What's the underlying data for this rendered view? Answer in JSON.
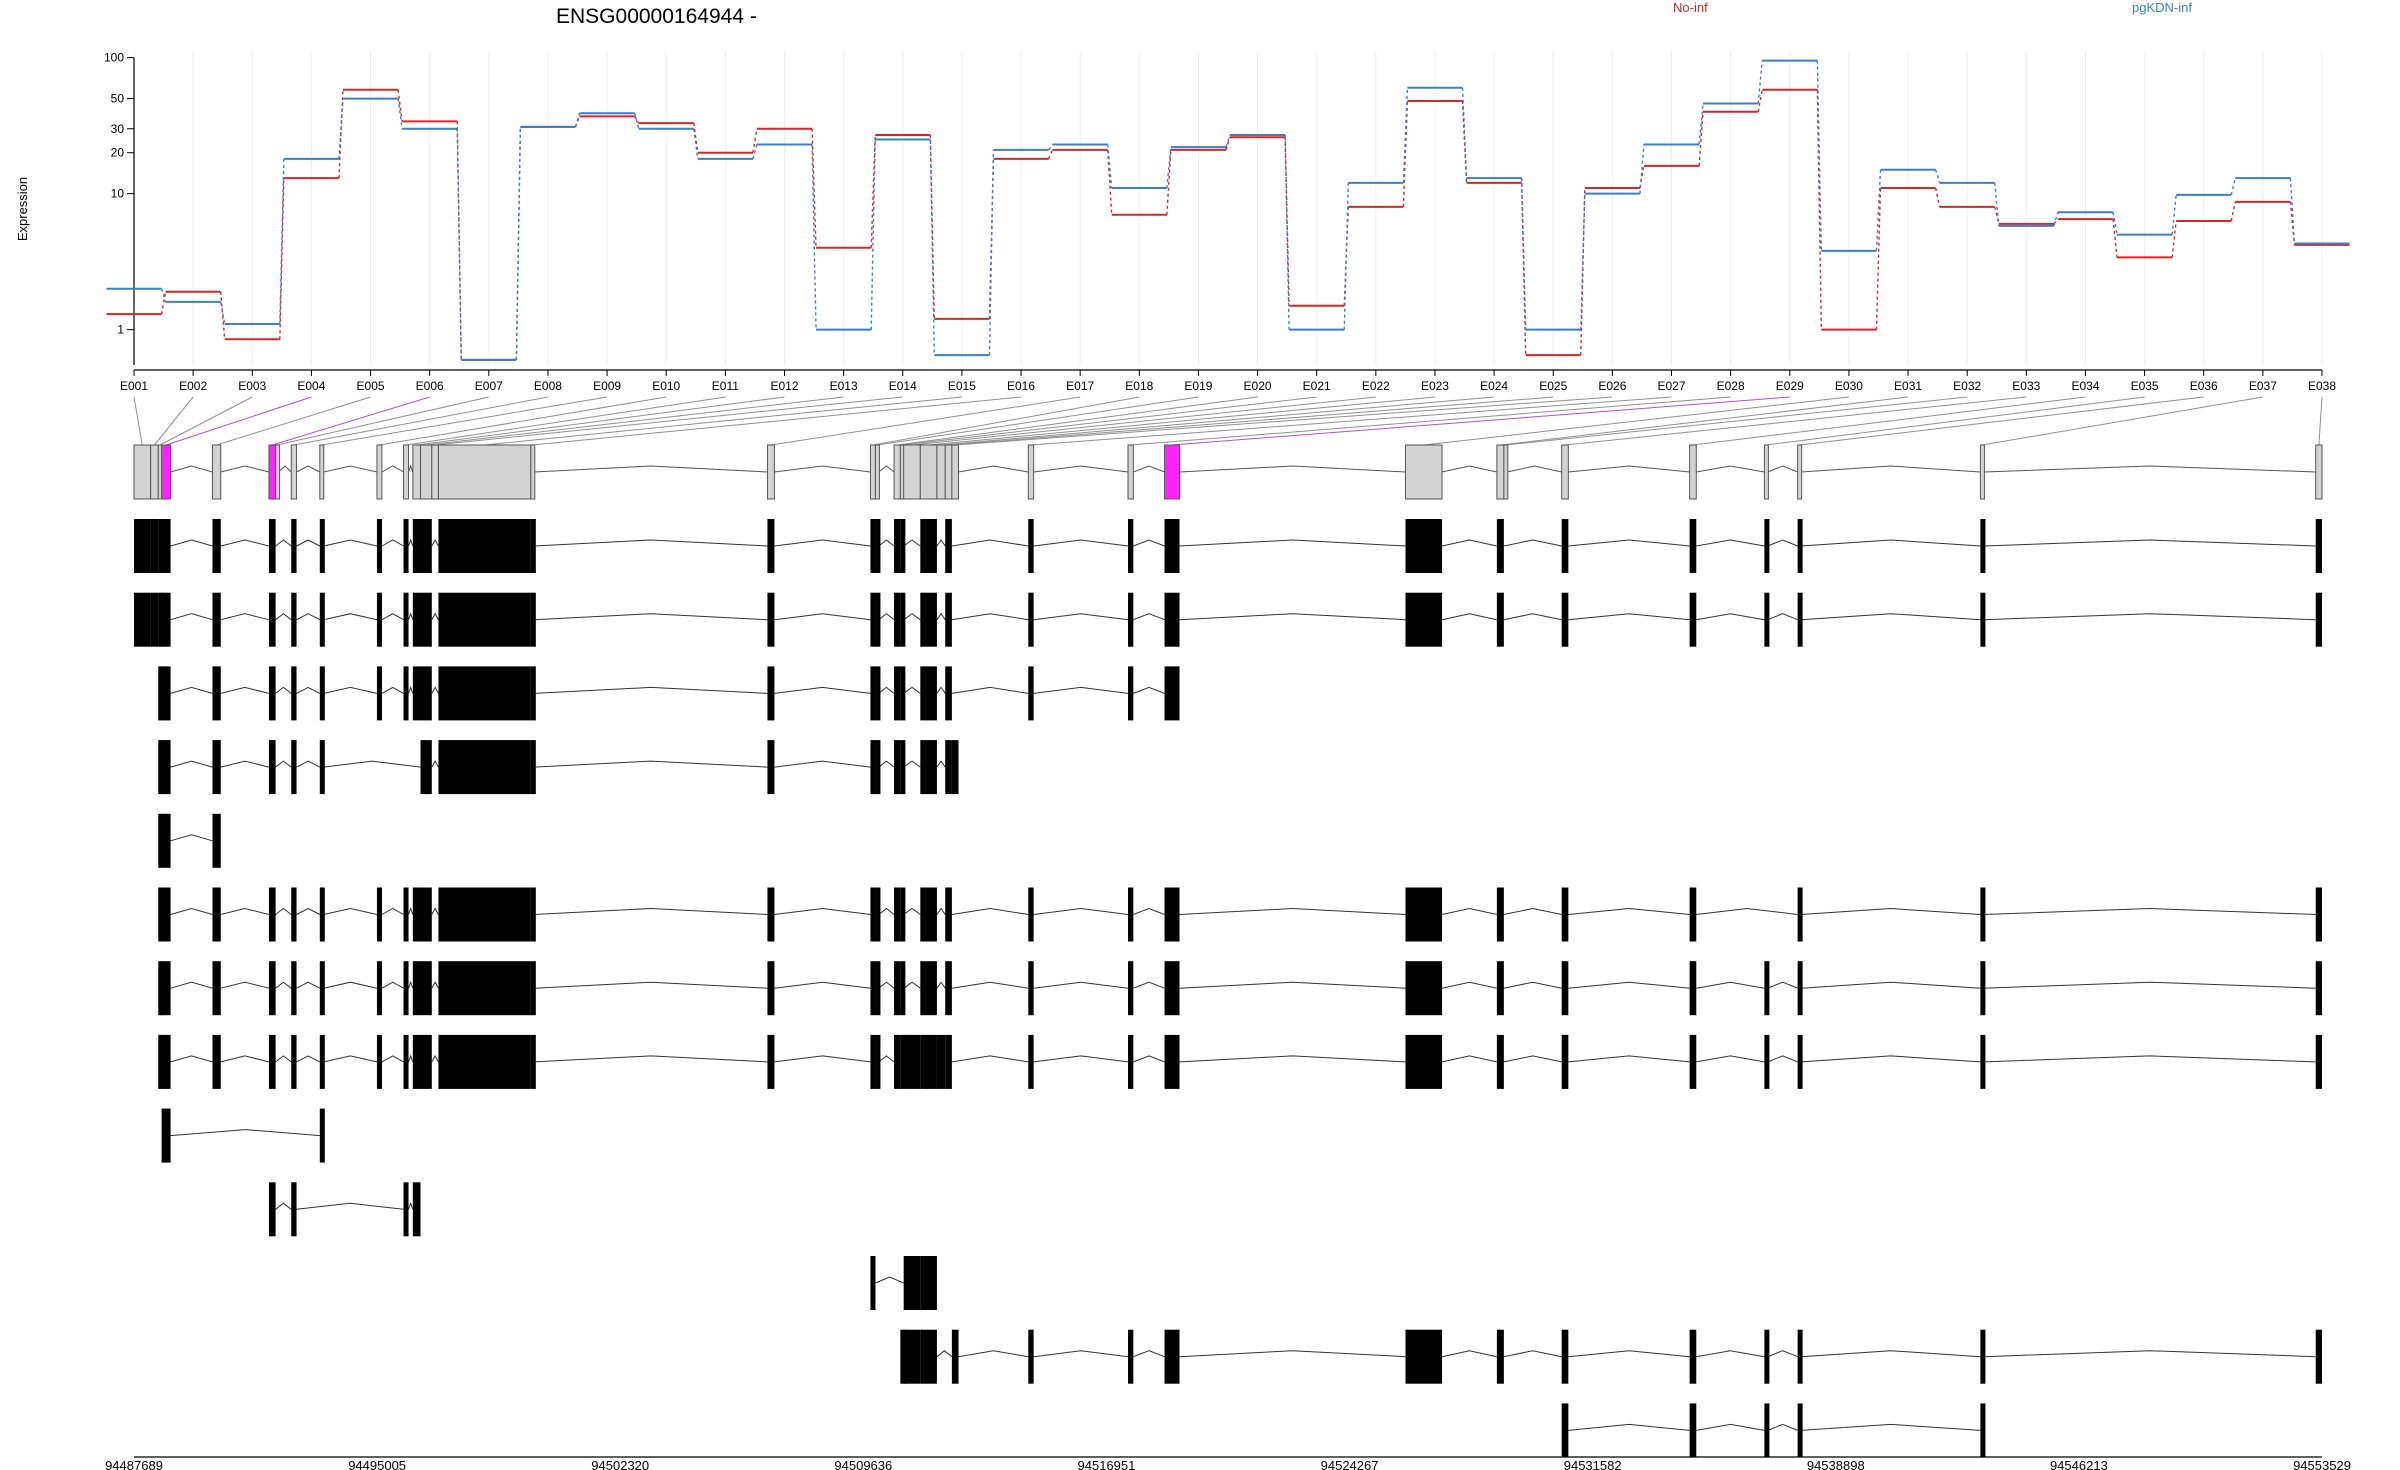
{
  "chart_data": {
    "type": "line",
    "title": "ENSG00000164944 -",
    "ylabel": "Expression",
    "yscale": "log",
    "ylim": [
      0.55,
      110
    ],
    "yticks": [
      1,
      10,
      20,
      30,
      50,
      100
    ],
    "categories": [
      "E001",
      "E002",
      "E003",
      "E004",
      "E005",
      "E006",
      "E007",
      "E008",
      "E009",
      "E010",
      "E011",
      "E012",
      "E013",
      "E014",
      "E015",
      "E016",
      "E017",
      "E018",
      "E019",
      "E020",
      "E021",
      "E022",
      "E023",
      "E024",
      "E025",
      "E026",
      "E027",
      "E028",
      "E029",
      "E030",
      "E031",
      "E032",
      "E033",
      "E034",
      "E035",
      "E036",
      "E037",
      "E038"
    ],
    "series": [
      {
        "name": "No-inf",
        "color": "#d62728",
        "values": [
          1.3,
          1.9,
          0.85,
          13,
          58,
          34,
          0.6,
          31,
          37,
          33,
          20,
          30,
          4,
          27,
          1.2,
          18,
          21,
          7,
          21,
          26,
          1.5,
          8,
          48,
          12,
          0.65,
          11,
          16,
          40,
          58,
          1,
          11,
          8,
          6,
          6.5,
          3.4,
          6.3,
          8.7,
          4.2
        ]
      },
      {
        "name": "pgKDN-inf",
        "color": "#3b7fc4",
        "values": [
          2,
          1.6,
          1.1,
          18,
          50,
          30,
          0.6,
          31,
          39,
          30,
          18,
          23,
          1,
          25,
          0.65,
          21,
          23,
          11,
          22,
          27,
          1,
          12,
          60,
          13,
          1,
          10,
          23,
          46,
          95,
          3.8,
          15,
          12,
          5.8,
          7.3,
          5,
          9.8,
          13,
          4.3
        ]
      }
    ],
    "legend_position": "top",
    "grid": "vertical",
    "genome": {
      "coordinates": [
        "94487689",
        "94495005",
        "94502320",
        "94509636",
        "94516951",
        "94524267",
        "94531582",
        "94538898",
        "94546213",
        "94553529"
      ],
      "range": [
        94487689,
        94553529
      ],
      "exon_color_default": "#d3d3d3",
      "exon_color_highlight": "#ff22ff",
      "highlighted_exons": [
        "E004",
        "E006",
        "E029"
      ],
      "exons": [
        {
          "id": "E001",
          "start": 94487689,
          "end": 94488190
        },
        {
          "id": "E002",
          "start": 94488190,
          "end": 94488420
        },
        {
          "id": "E003",
          "start": 94488420,
          "end": 94488520
        },
        {
          "id": "E004",
          "start": 94488520,
          "end": 94488790
        },
        {
          "id": "E005",
          "start": 94490050,
          "end": 94490300
        },
        {
          "id": "E006",
          "start": 94491750,
          "end": 94491950
        },
        {
          "id": "E007",
          "start": 94491950,
          "end": 94492040
        },
        {
          "id": "E008",
          "start": 94492420,
          "end": 94492580
        },
        {
          "id": "E009",
          "start": 94493280,
          "end": 94493400
        },
        {
          "id": "E010",
          "start": 94495000,
          "end": 94495150
        },
        {
          "id": "E011",
          "start": 94495800,
          "end": 94495950
        },
        {
          "id": "E012",
          "start": 94496080,
          "end": 94496310
        },
        {
          "id": "E013",
          "start": 94496310,
          "end": 94496650
        },
        {
          "id": "E014",
          "start": 94496650,
          "end": 94496850
        },
        {
          "id": "E015",
          "start": 94496850,
          "end": 94499630
        },
        {
          "id": "E016",
          "start": 94499630,
          "end": 94499730
        },
        {
          "id": "E017",
          "start": 94506750,
          "end": 94506960
        },
        {
          "id": "E018",
          "start": 94509850,
          "end": 94510000
        },
        {
          "id": "E019",
          "start": 94510000,
          "end": 94510100
        },
        {
          "id": "E020",
          "start": 94510560,
          "end": 94510750
        },
        {
          "id": "E021",
          "start": 94510750,
          "end": 94510850
        },
        {
          "id": "E022",
          "start": 94510850,
          "end": 94511350
        },
        {
          "id": "E023",
          "start": 94511350,
          "end": 94511850
        },
        {
          "id": "E024",
          "start": 94511850,
          "end": 94512100
        },
        {
          "id": "E025",
          "start": 94512100,
          "end": 94512300
        },
        {
          "id": "E026",
          "start": 94512300,
          "end": 94512500
        },
        {
          "id": "E027",
          "start": 94514600,
          "end": 94514760
        },
        {
          "id": "E028",
          "start": 94517600,
          "end": 94517760
        },
        {
          "id": "E029",
          "start": 94518700,
          "end": 94519150
        },
        {
          "id": "E030",
          "start": 94525950,
          "end": 94527050
        },
        {
          "id": "E031",
          "start": 94528700,
          "end": 94528910
        },
        {
          "id": "E032",
          "start": 94528910,
          "end": 94529010
        },
        {
          "id": "E033",
          "start": 94530650,
          "end": 94530850
        },
        {
          "id": "E034",
          "start": 94534500,
          "end": 94534700
        },
        {
          "id": "E035",
          "start": 94536750,
          "end": 94536850
        },
        {
          "id": "E036",
          "start": 94537750,
          "end": 94537850
        },
        {
          "id": "E037",
          "start": 94543250,
          "end": 94543350
        },
        {
          "id": "E038",
          "start": 94553340,
          "end": 94553529
        }
      ],
      "transcripts": [
        [
          "E001",
          "E002",
          "E003",
          "E004",
          "E005",
          "E006",
          "E008",
          "E009",
          "E010",
          "E011",
          "E012",
          "E013",
          "E015",
          "E016",
          "E017",
          "E018",
          "E019",
          "E020",
          "E021",
          "E023",
          "E025",
          "E027",
          "E028",
          "E029",
          "E030",
          "E031",
          "E033",
          "E034",
          "E035",
          "E036",
          "E037",
          "E038"
        ],
        [
          "E001",
          "E002",
          "E003",
          "E004",
          "E005",
          "E006",
          "E008",
          "E009",
          "E010",
          "E011",
          "E012",
          "E013",
          "E015",
          "E016",
          "E017",
          "E018",
          "E019",
          "E020",
          "E021",
          "E023",
          "E025",
          "E027",
          "E028",
          "E029",
          "E030",
          "E031",
          "E033",
          "E034",
          "E035",
          "E036",
          "E037",
          "E038"
        ],
        [
          "E003",
          "E004",
          "E005",
          "E006",
          "E008",
          "E009",
          "E010",
          "E011",
          "E012",
          "E013",
          "E015",
          "E016",
          "E017",
          "E018",
          "E019",
          "E020",
          "E021",
          "E023",
          "E025",
          "E027",
          "E028",
          "E029"
        ],
        [
          "E003",
          "E004",
          "E005",
          "E006",
          "E008",
          "E009",
          "E013",
          "E015",
          "E016",
          "E017",
          "E018",
          "E019",
          "E020",
          "E021",
          "E023",
          "E025",
          "E026"
        ],
        [
          "E003",
          "E004",
          "E005"
        ],
        [
          "E003",
          "E004",
          "E005",
          "E006",
          "E008",
          "E009",
          "E010",
          "E011",
          "E012",
          "E013",
          "E015",
          "E016",
          "E017",
          "E018",
          "E019",
          "E020",
          "E021",
          "E023",
          "E025",
          "E027",
          "E028",
          "E029",
          "E030",
          "E031",
          "E033",
          "E034",
          "E036",
          "E037",
          "E038"
        ],
        [
          "E003",
          "E004",
          "E005",
          "E006",
          "E008",
          "E009",
          "E010",
          "E011",
          "E012",
          "E013",
          "E015",
          "E016",
          "E017",
          "E018",
          "E019",
          "E020",
          "E021",
          "E023",
          "E025",
          "E027",
          "E028",
          "E029",
          "E030",
          "E031",
          "E033",
          "E034",
          "E035",
          "E036",
          "E037",
          "E038"
        ],
        [
          "E003",
          "E004",
          "E005",
          "E006",
          "E008",
          "E009",
          "E010",
          "E011",
          "E012",
          "E013",
          "E015",
          "E016",
          "E017",
          "E018",
          "E019",
          "E020",
          "E021",
          "E022",
          "E023",
          "E024",
          "E025",
          "E027",
          "E028",
          "E029",
          "E030",
          "E031",
          "E033",
          "E034",
          "E035",
          "E036",
          "E037",
          "E038"
        ],
        [
          "E004",
          "E009"
        ],
        [
          "E006",
          "E008",
          "E011",
          "E012"
        ],
        [
          "E018",
          "E022",
          "E023"
        ],
        [
          "E021",
          "E022",
          "E023",
          "E026",
          "E027",
          "E028",
          "E029",
          "E030",
          "E031",
          "E033",
          "E034",
          "E035",
          "E036",
          "E037",
          "E038"
        ],
        [
          "E033",
          "E034",
          "E035",
          "E036",
          "E037"
        ]
      ]
    }
  }
}
